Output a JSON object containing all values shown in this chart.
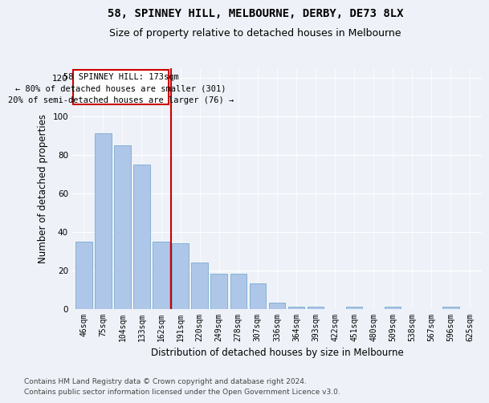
{
  "title": "58, SPINNEY HILL, MELBOURNE, DERBY, DE73 8LX",
  "subtitle": "Size of property relative to detached houses in Melbourne",
  "xlabel": "Distribution of detached houses by size in Melbourne",
  "ylabel": "Number of detached properties",
  "categories": [
    "46sqm",
    "75sqm",
    "104sqm",
    "133sqm",
    "162sqm",
    "191sqm",
    "220sqm",
    "249sqm",
    "278sqm",
    "307sqm",
    "336sqm",
    "364sqm",
    "393sqm",
    "422sqm",
    "451sqm",
    "480sqm",
    "509sqm",
    "538sqm",
    "567sqm",
    "596sqm",
    "625sqm"
  ],
  "values": [
    35,
    91,
    85,
    75,
    35,
    34,
    24,
    18,
    18,
    13,
    3,
    1,
    1,
    0,
    1,
    0,
    1,
    0,
    0,
    1,
    0
  ],
  "bar_color": "#aec6e8",
  "bar_edge_color": "#7aaad0",
  "vline_x": 4.5,
  "vline_color": "#cc0000",
  "annotation_title": "58 SPINNEY HILL: 173sqm",
  "annotation_line1": "← 80% of detached houses are smaller (301)",
  "annotation_line2": "20% of semi-detached houses are larger (76) →",
  "annotation_box_color": "#cc0000",
  "ylim": [
    0,
    125
  ],
  "yticks": [
    0,
    20,
    40,
    60,
    80,
    100,
    120
  ],
  "footer1": "Contains HM Land Registry data © Crown copyright and database right 2024.",
  "footer2": "Contains public sector information licensed under the Open Government Licence v3.0.",
  "bg_color": "#eef2f8",
  "title_fontsize": 10,
  "subtitle_fontsize": 9,
  "axis_label_fontsize": 8.5,
  "tick_fontsize": 7,
  "footer_fontsize": 6.5,
  "annotation_fontsize": 7.5
}
